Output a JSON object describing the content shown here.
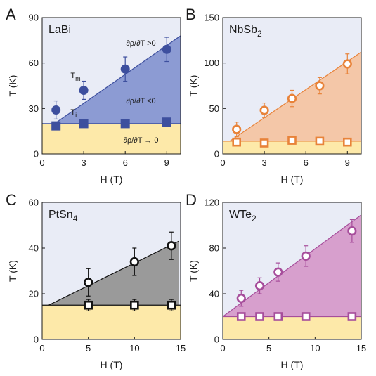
{
  "chart_data": [
    {
      "type": "scatter",
      "panel": "A",
      "material": "LaBi",
      "xlabel": "H (T)",
      "ylabel": "T (K)",
      "xlim": [
        0,
        10
      ],
      "ylim": [
        0,
        90
      ],
      "xticks": [
        0,
        3,
        6,
        9
      ],
      "yticks": [
        0,
        30,
        60,
        90
      ],
      "color": "#3d4f9e",
      "fill_color": "#8c9bd3",
      "marker_fill": "filled",
      "series": [
        {
          "name": "Tm",
          "marker": "circle",
          "points": [
            {
              "x": 1,
              "y": 29,
              "err": 6
            },
            {
              "x": 3,
              "y": 42,
              "err": 6
            },
            {
              "x": 6,
              "y": 56,
              "err": 8
            },
            {
              "x": 9,
              "y": 69,
              "err": 8
            }
          ]
        },
        {
          "name": "Ti",
          "marker": "square",
          "points": [
            {
              "x": 1,
              "y": 18.5,
              "err": 0
            },
            {
              "x": 3,
              "y": 20,
              "err": 0
            },
            {
              "x": 6,
              "y": 20,
              "err": 0
            },
            {
              "x": 9,
              "y": 21,
              "err": 0
            }
          ]
        }
      ],
      "boundary_line": [
        [
          0.9,
          20
        ],
        [
          10,
          78
        ]
      ],
      "lower_line": 20,
      "labels": {
        "tm_label": "T",
        "tm_sub": "m",
        "ti_label": "T",
        "ti_sub": "i"
      },
      "annotations": [
        "∂ρ/∂T >0",
        "∂ρ/∂T <0",
        "∂ρ/∂T → 0"
      ]
    },
    {
      "type": "scatter",
      "panel": "B",
      "material": "NbSb",
      "material_sub": "2",
      "xlabel": "H (T)",
      "ylabel": "T (K)",
      "xlim": [
        0,
        10
      ],
      "ylim": [
        0,
        150
      ],
      "xticks": [
        0,
        3,
        6,
        9
      ],
      "yticks": [
        0,
        50,
        100,
        150
      ],
      "color": "#e8833a",
      "fill_color": "#f4c7a8",
      "marker_fill": "open",
      "series": [
        {
          "name": "",
          "marker": "circle",
          "points": [
            {
              "x": 1,
              "y": 27,
              "err": 8
            },
            {
              "x": 3,
              "y": 48,
              "err": 8
            },
            {
              "x": 5,
              "y": 61,
              "err": 9
            },
            {
              "x": 7,
              "y": 75,
              "err": 9
            },
            {
              "x": 9,
              "y": 99,
              "err": 11
            }
          ]
        },
        {
          "name": "",
          "marker": "square",
          "points": [
            {
              "x": 1,
              "y": 13,
              "err": 0
            },
            {
              "x": 3,
              "y": 12,
              "err": 0
            },
            {
              "x": 5,
              "y": 15,
              "err": 0
            },
            {
              "x": 7,
              "y": 14,
              "err": 0
            },
            {
              "x": 9,
              "y": 13,
              "err": 0
            }
          ]
        }
      ],
      "boundary_line": [
        [
          0.5,
          14
        ],
        [
          10,
          112
        ]
      ],
      "lower_line": 14
    },
    {
      "type": "scatter",
      "panel": "C",
      "material": "PtSn",
      "material_sub": "4",
      "xlabel": "H (T)",
      "ylabel": "T (K)",
      "xlim": [
        0,
        15
      ],
      "ylim": [
        0,
        60
      ],
      "xticks": [
        0,
        5,
        10,
        15
      ],
      "yticks": [
        0,
        20,
        40,
        60
      ],
      "color": "#111111",
      "fill_color": "#9a9a9a",
      "marker_fill": "open",
      "series": [
        {
          "name": "",
          "marker": "circle",
          "points": [
            {
              "x": 5,
              "y": 25,
              "err": 6
            },
            {
              "x": 10,
              "y": 34,
              "err": 6
            },
            {
              "x": 14,
              "y": 41,
              "err": 6
            }
          ]
        },
        {
          "name": "",
          "marker": "square",
          "points": [
            {
              "x": 5,
              "y": 15,
              "err": 2.5
            },
            {
              "x": 10,
              "y": 15,
              "err": 2.5
            },
            {
              "x": 14,
              "y": 15,
              "err": 2.5
            }
          ]
        }
      ],
      "boundary_line": [
        [
          0.7,
          15
        ],
        [
          14.8,
          43
        ]
      ],
      "lower_line": 15
    },
    {
      "type": "scatter",
      "panel": "D",
      "material": "WTe",
      "material_sub": "2",
      "xlabel": "H (T)",
      "ylabel": "T (K)",
      "xlim": [
        0,
        15
      ],
      "ylim": [
        0,
        120
      ],
      "xticks": [
        0,
        5,
        10,
        15
      ],
      "yticks": [
        0,
        40,
        80,
        120
      ],
      "color": "#a64d9b",
      "fill_color": "#d79fcd",
      "marker_fill": "open",
      "series": [
        {
          "name": "",
          "marker": "circle",
          "points": [
            {
              "x": 2,
              "y": 36,
              "err": 7
            },
            {
              "x": 4,
              "y": 47,
              "err": 7
            },
            {
              "x": 6,
              "y": 59,
              "err": 8
            },
            {
              "x": 9,
              "y": 73,
              "err": 9
            },
            {
              "x": 14,
              "y": 95,
              "err": 10
            }
          ]
        },
        {
          "name": "",
          "marker": "square",
          "points": [
            {
              "x": 2,
              "y": 20,
              "err": 0
            },
            {
              "x": 4,
              "y": 20,
              "err": 0
            },
            {
              "x": 6,
              "y": 20,
              "err": 0
            },
            {
              "x": 9,
              "y": 20,
              "err": 0
            },
            {
              "x": 14,
              "y": 20,
              "err": 0
            }
          ]
        }
      ],
      "boundary_line": [
        [
          0,
          20
        ],
        [
          15,
          109
        ]
      ],
      "lower_line": 20
    }
  ],
  "colors": {
    "high_region": "#e9ecf6",
    "low_region": "#fde9a9",
    "axis": "#1a1a1a"
  }
}
